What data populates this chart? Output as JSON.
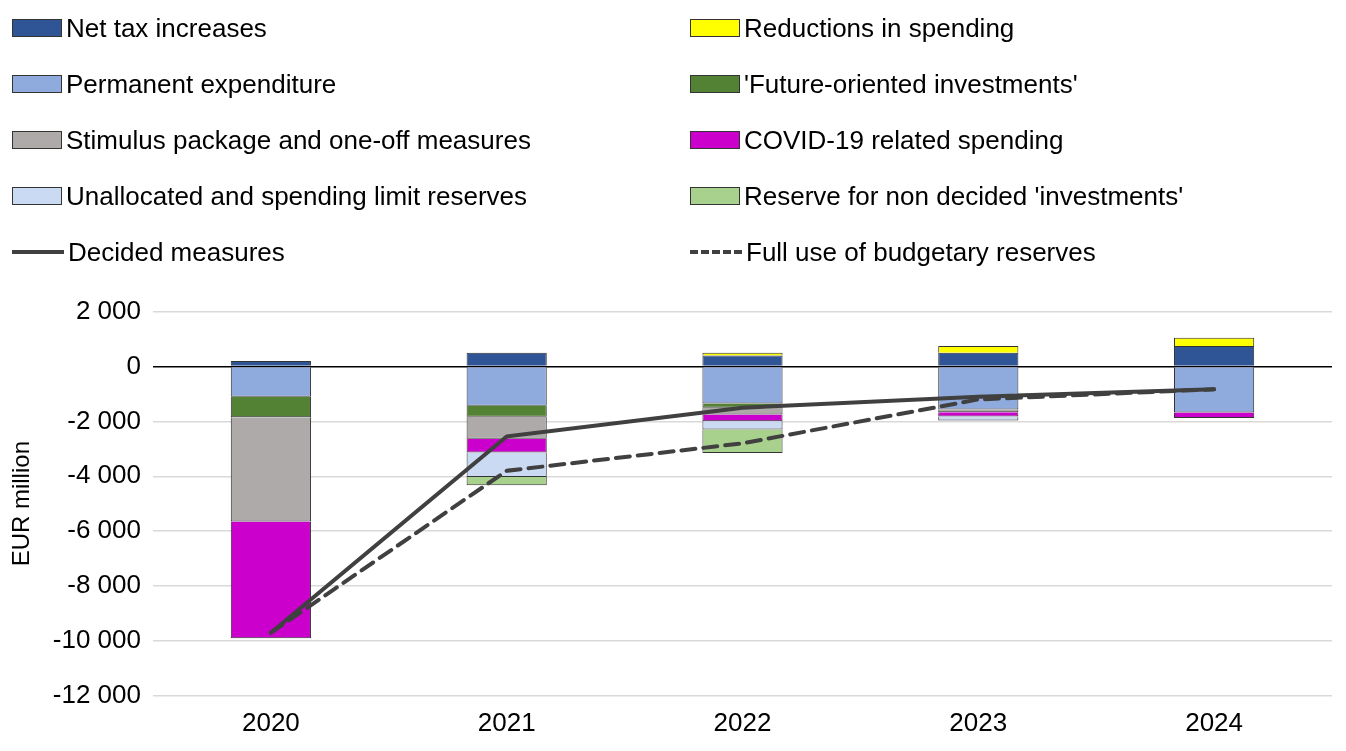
{
  "chart_data": {
    "type": "bar",
    "stacked": true,
    "ylabel": "EUR million",
    "categories": [
      "2020",
      "2021",
      "2022",
      "2023",
      "2024"
    ],
    "series": [
      {
        "name": "Net tax increases",
        "color": "#2f5597",
        "values": [
          200,
          500,
          400,
          500,
          750
        ]
      },
      {
        "name": "Reductions in spending",
        "color": "#ffff00",
        "values": [
          null,
          null,
          100,
          250,
          300
        ]
      },
      {
        "name": "Permanent expenditure",
        "color": "#8faadc",
        "values": [
          -1100,
          -1430,
          -1350,
          -1570,
          -1680
        ]
      },
      {
        "name": "'Future-oriented investments'",
        "color": "#548235",
        "values": [
          -750,
          -400,
          -150,
          null,
          null
        ]
      },
      {
        "name": "Stimulus package and one-off measures",
        "color": "#aeaaaa",
        "values": [
          -3800,
          -800,
          -250,
          -100,
          null
        ]
      },
      {
        "name": "COVID-19 related spending",
        "color": "#cc00cc",
        "values": [
          -4250,
          -500,
          -250,
          -150,
          -200
        ]
      },
      {
        "name": "Unallocated and spending limit reserves",
        "color": "#c9daf2",
        "values": [
          null,
          -900,
          -300,
          -150,
          null
        ]
      },
      {
        "name": "Reserve for non decided 'investments'",
        "color": "#a9d18e",
        "values": [
          null,
          -300,
          -850,
          null,
          null
        ]
      },
      {
        "name": "Decided measures",
        "type": "line",
        "color": "#404040",
        "line_style": "solid",
        "values": [
          -9700,
          -2550,
          -1500,
          -1100,
          -830
        ]
      },
      {
        "name": "Full use of budgetary reserves",
        "type": "line",
        "color": "#404040",
        "line_style": "dashed",
        "values": [
          -9700,
          -3800,
          -2800,
          -1200,
          -830
        ]
      }
    ],
    "ylim": [
      -12000,
      2000
    ],
    "yticks": [
      {
        "value": 2000,
        "label": "2 000"
      },
      {
        "value": 0,
        "label": "0"
      },
      {
        "value": -2000,
        "label": "-2 000"
      },
      {
        "value": -4000,
        "label": "-4 000"
      },
      {
        "value": -6000,
        "label": "-6 000"
      },
      {
        "value": -8000,
        "label": "-8 000"
      },
      {
        "value": -10000,
        "label": "-10 000"
      },
      {
        "value": -12000,
        "label": "-12 000"
      }
    ],
    "grid": "y",
    "legend": "top",
    "marker": "none"
  }
}
